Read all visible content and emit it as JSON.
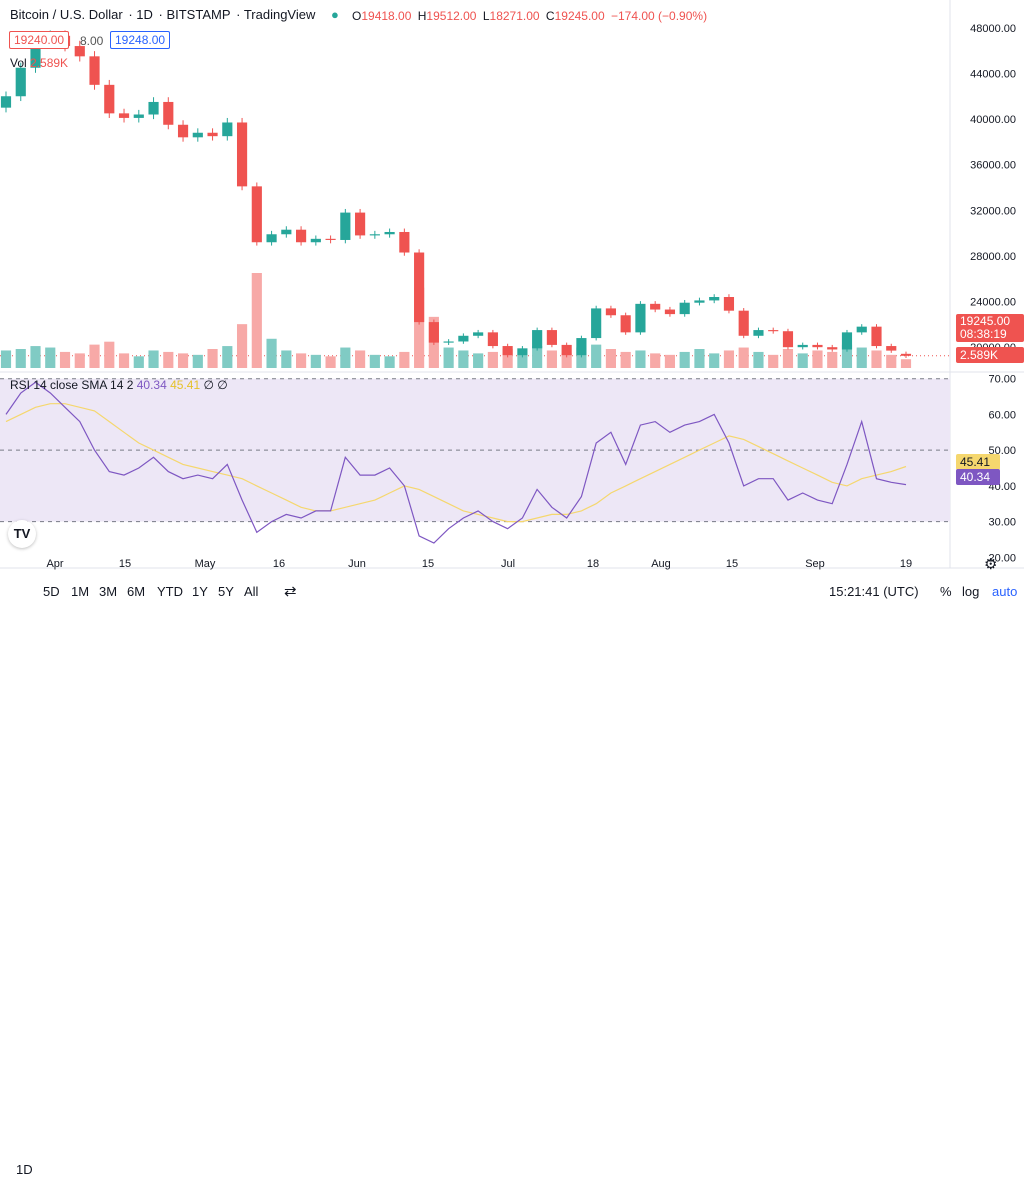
{
  "header": {
    "title": "Bitcoin / U.S. Dollar",
    "interval": "1D",
    "exchange": "BITSTAMP",
    "source": "TradingView",
    "ohlc": {
      "o_label": "O",
      "o": "19418.00",
      "h_label": "H",
      "h": "19512.00",
      "l_label": "L",
      "l": "18271.00",
      "c_label": "C",
      "c": "19245.00",
      "change": "−174.00 (−0.90%)"
    },
    "bid": "19240.00",
    "spread": "8.00",
    "ask": "19248.00",
    "vol_label": "Vol",
    "vol_value": "2.589K"
  },
  "price_axis": [
    "48000.00",
    "44000.00",
    "40000.00",
    "36000.00",
    "32000.00",
    "28000.00",
    "24000.00",
    "20000.00"
  ],
  "last_price": {
    "value": "19245.00",
    "countdown": "08:38:19"
  },
  "volume_badge": "2.589K",
  "rsi": {
    "legend": "RSI 14 close SMA 14 2",
    "rsi_value": "40.34",
    "sma_value": "45.41",
    "extra": "∅ ∅",
    "axis": [
      "70.00",
      "60.00",
      "50.00",
      "40.00",
      "30.00",
      "20.00"
    ]
  },
  "time_axis": [
    "Apr",
    "15",
    "May",
    "16",
    "Jun",
    "15",
    "Jul",
    "18",
    "Aug",
    "15",
    "Sep",
    "19"
  ],
  "toolbar": {
    "ranges": [
      "1D",
      "5D",
      "1M",
      "3M",
      "6M",
      "YTD",
      "1Y",
      "5Y",
      "All"
    ],
    "clock": "15:21:41 (UTC)",
    "percent": "%",
    "log": "log",
    "auto": "auto"
  },
  "colors": {
    "up": "#26a69a",
    "down": "#ef5350",
    "rsi": "#7e57c2",
    "sma": "#f5d76e",
    "band": "#ede7f6"
  },
  "chart_data": {
    "type": "candlestick",
    "x": [
      "Mar 21",
      "Mar 24",
      "Mar 27",
      "Mar 30",
      "Apr 2",
      "Apr 5",
      "Apr 8",
      "Apr 11",
      "Apr 14",
      "Apr 17",
      "Apr 20",
      "Apr 23",
      "Apr 26",
      "Apr 29",
      "May 2",
      "May 5",
      "May 8",
      "May 11",
      "May 14",
      "May 17",
      "May 20",
      "May 23",
      "May 26",
      "May 29",
      "Jun 1",
      "Jun 4",
      "Jun 7",
      "Jun 10",
      "Jun 13",
      "Jun 16",
      "Jun 19",
      "Jun 22",
      "Jun 25",
      "Jun 28",
      "Jul 1",
      "Jul 4",
      "Jul 7",
      "Jul 10",
      "Jul 13",
      "Jul 16",
      "Jul 19",
      "Jul 22",
      "Jul 25",
      "Jul 28",
      "Jul 31",
      "Aug 3",
      "Aug 6",
      "Aug 9",
      "Aug 12",
      "Aug 15",
      "Aug 18",
      "Aug 21",
      "Aug 24",
      "Aug 27",
      "Aug 30",
      "Sep 2",
      "Sep 5",
      "Sep 8",
      "Sep 11",
      "Sep 14",
      "Sep 17",
      "Sep 19"
    ],
    "close": [
      42000,
      44500,
      46800,
      47300,
      46400,
      45500,
      43000,
      40500,
      40100,
      40400,
      41500,
      39500,
      38400,
      38800,
      38500,
      39700,
      34100,
      29200,
      29900,
      30300,
      29200,
      29500,
      29400,
      31800,
      29800,
      29900,
      30100,
      28300,
      22200,
      20400,
      20500,
      21000,
      21300,
      20100,
      19300,
      19900,
      21500,
      20200,
      19300,
      20800,
      23400,
      22800,
      21300,
      23800,
      23300,
      22900,
      23900,
      24100,
      24400,
      23200,
      21000,
      21500,
      21400,
      20000,
      20200,
      20000,
      19800,
      21300,
      21800,
      20100,
      19700,
      19245
    ],
    "open": [
      41000,
      42000,
      44500,
      46800,
      47300,
      46400,
      45500,
      43000,
      40500,
      40100,
      40400,
      41500,
      39500,
      38400,
      38800,
      38500,
      39700,
      34100,
      29200,
      29900,
      30300,
      29200,
      29500,
      29400,
      31800,
      29800,
      29900,
      30100,
      28300,
      22200,
      20400,
      20500,
      21000,
      21300,
      20100,
      19300,
      19900,
      21500,
      20200,
      19300,
      20800,
      23400,
      22800,
      21300,
      23800,
      23300,
      22900,
      23900,
      24100,
      24400,
      23200,
      21000,
      21500,
      21400,
      20000,
      20200,
      20000,
      19800,
      21300,
      21800,
      20100,
      19418
    ],
    "volume": [
      1.2,
      1.3,
      1.5,
      1.4,
      1.1,
      1.0,
      1.6,
      1.8,
      1.0,
      0.8,
      1.2,
      1.1,
      1.0,
      0.9,
      1.3,
      1.5,
      3.0,
      6.5,
      2.0,
      1.2,
      1.0,
      0.9,
      0.8,
      1.4,
      1.2,
      0.9,
      0.8,
      1.1,
      5.5,
      3.5,
      1.4,
      1.2,
      1.0,
      1.1,
      1.3,
      0.9,
      1.5,
      1.2,
      1.0,
      1.4,
      1.6,
      1.3,
      1.1,
      1.2,
      1.0,
      0.9,
      1.1,
      1.3,
      1.0,
      1.2,
      1.4,
      1.1,
      0.9,
      1.3,
      1.0,
      1.2,
      1.1,
      1.6,
      1.4,
      1.2,
      0.9,
      0.6
    ],
    "rsi": [
      60,
      66,
      69,
      66,
      62,
      58,
      50,
      44,
      43,
      45,
      48,
      44,
      42,
      43,
      42,
      46,
      36,
      27,
      30,
      32,
      31,
      33,
      33,
      48,
      43,
      43,
      45,
      40,
      26,
      24,
      28,
      31,
      33,
      30,
      28,
      31,
      39,
      34,
      31,
      37,
      52,
      55,
      46,
      57,
      58,
      55,
      57,
      58,
      60,
      52,
      40,
      42,
      42,
      36,
      38,
      36,
      35,
      46,
      58,
      42,
      41,
      40.34
    ],
    "sma": [
      58,
      60,
      62,
      63,
      63,
      62,
      61,
      58,
      55,
      52,
      50,
      48,
      46,
      45,
      44,
      43,
      42,
      40,
      38,
      36,
      34,
      33,
      33,
      34,
      35,
      36,
      38,
      40,
      39,
      37,
      35,
      33,
      32,
      31,
      30,
      30,
      31,
      32,
      32,
      33,
      35,
      38,
      40,
      42,
      44,
      46,
      48,
      50,
      52,
      54,
      53,
      51,
      49,
      47,
      45,
      43,
      41,
      40,
      42,
      43,
      44,
      45.41
    ],
    "ylim": [
      18000,
      50000
    ],
    "rsi_ylim": [
      17,
      73
    ],
    "rsi_bands": [
      30,
      50,
      70
    ]
  }
}
